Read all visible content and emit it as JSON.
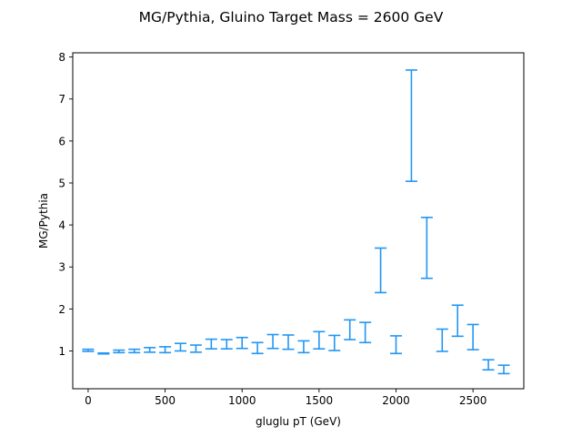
{
  "chart_data": {
    "type": "errorbar",
    "title": "MG/Pythia, Gluino Target Mass = 2600 GeV",
    "xlabel": "gluglu pT (GeV)",
    "ylabel": "MG/Pythia",
    "xlim": [
      -100,
      2830
    ],
    "ylim": [
      0.1,
      8.1
    ],
    "xticks": [
      0,
      500,
      1000,
      1500,
      2000,
      2500
    ],
    "yticks": [
      1,
      2,
      3,
      4,
      5,
      6,
      7,
      8
    ],
    "xtick_labels": [
      "0",
      "500",
      "1000",
      "1500",
      "2000",
      "2500"
    ],
    "ytick_labels": [
      "1",
      "2",
      "3",
      "4",
      "5",
      "6",
      "7",
      "8"
    ],
    "grid": false,
    "legend": "none",
    "color": "#2196f3",
    "series": [
      {
        "points": [
          {
            "x": 0,
            "lo": 0.99,
            "hi": 1.04
          },
          {
            "x": 100,
            "lo": 0.93,
            "hi": 0.95
          },
          {
            "x": 200,
            "lo": 0.96,
            "hi": 1.02
          },
          {
            "x": 300,
            "lo": 0.96,
            "hi": 1.04
          },
          {
            "x": 400,
            "lo": 0.97,
            "hi": 1.08
          },
          {
            "x": 500,
            "lo": 0.96,
            "hi": 1.1
          },
          {
            "x": 600,
            "lo": 1.0,
            "hi": 1.18
          },
          {
            "x": 700,
            "lo": 0.97,
            "hi": 1.14
          },
          {
            "x": 800,
            "lo": 1.05,
            "hi": 1.28
          },
          {
            "x": 900,
            "lo": 1.05,
            "hi": 1.27
          },
          {
            "x": 1000,
            "lo": 1.06,
            "hi": 1.32
          },
          {
            "x": 1100,
            "lo": 0.94,
            "hi": 1.2
          },
          {
            "x": 1200,
            "lo": 1.06,
            "hi": 1.39
          },
          {
            "x": 1300,
            "lo": 1.04,
            "hi": 1.38
          },
          {
            "x": 1400,
            "lo": 0.96,
            "hi": 1.24
          },
          {
            "x": 1500,
            "lo": 1.05,
            "hi": 1.46
          },
          {
            "x": 1600,
            "lo": 1.01,
            "hi": 1.37
          },
          {
            "x": 1700,
            "lo": 1.27,
            "hi": 1.74
          },
          {
            "x": 1800,
            "lo": 1.2,
            "hi": 1.68
          },
          {
            "x": 1900,
            "lo": 2.39,
            "hi": 3.45
          },
          {
            "x": 2000,
            "lo": 0.94,
            "hi": 1.36
          },
          {
            "x": 2100,
            "lo": 5.04,
            "hi": 7.69
          },
          {
            "x": 2200,
            "lo": 2.73,
            "hi": 4.18
          },
          {
            "x": 2300,
            "lo": 0.99,
            "hi": 1.52
          },
          {
            "x": 2400,
            "lo": 1.35,
            "hi": 2.09
          },
          {
            "x": 2500,
            "lo": 1.03,
            "hi": 1.63
          },
          {
            "x": 2600,
            "lo": 0.55,
            "hi": 0.79
          },
          {
            "x": 2700,
            "lo": 0.46,
            "hi": 0.66
          }
        ]
      }
    ]
  }
}
